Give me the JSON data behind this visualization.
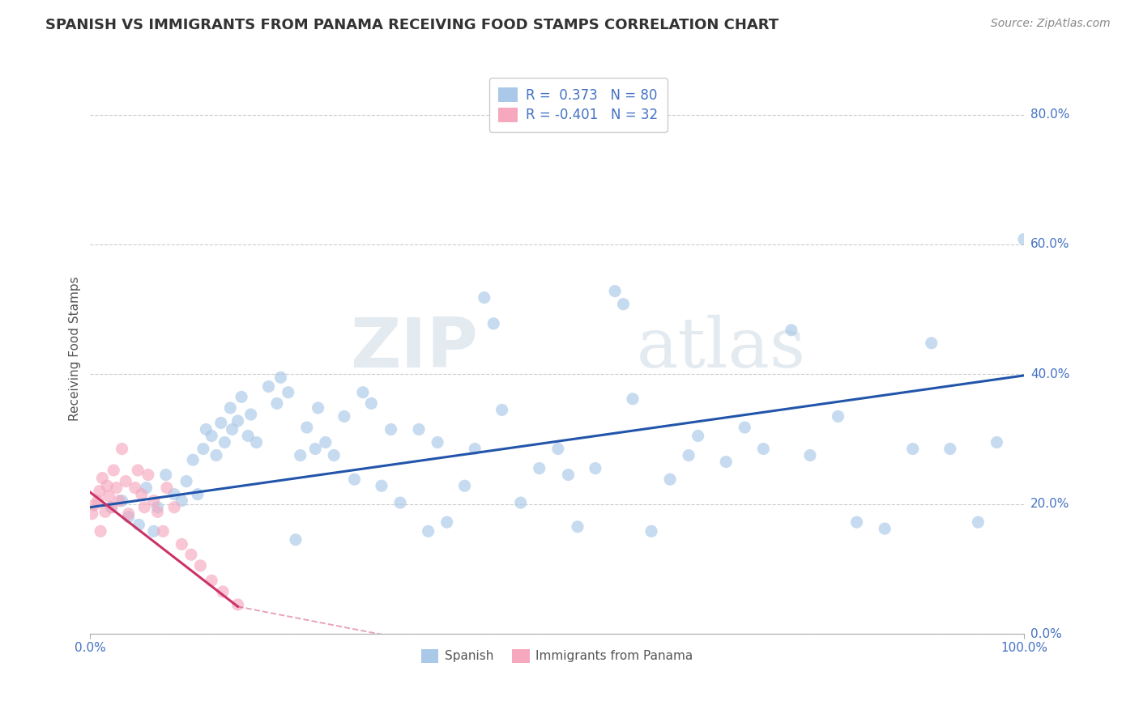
{
  "title": "SPANISH VS IMMIGRANTS FROM PANAMA RECEIVING FOOD STAMPS CORRELATION CHART",
  "source": "Source: ZipAtlas.com",
  "ylabel": "Receiving Food Stamps",
  "ytick_labels": [
    "0.0%",
    "20.0%",
    "40.0%",
    "60.0%",
    "80.0%"
  ],
  "ytick_values": [
    0.0,
    0.2,
    0.4,
    0.6,
    0.8
  ],
  "xlim": [
    0.0,
    1.0
  ],
  "ylim": [
    0.0,
    0.88
  ],
  "watermark_zip": "ZIP",
  "watermark_atlas": "atlas",
  "legend_blue_label": "R =  0.373   N = 80",
  "legend_pink_label": "R = -0.401   N = 32",
  "legend_spanish": "Spanish",
  "legend_panama": "Immigrants from Panama",
  "blue_scatter_x": [
    0.022,
    0.034,
    0.041,
    0.052,
    0.06,
    0.068,
    0.072,
    0.081,
    0.09,
    0.098,
    0.103,
    0.11,
    0.115,
    0.121,
    0.124,
    0.13,
    0.135,
    0.14,
    0.144,
    0.15,
    0.152,
    0.158,
    0.162,
    0.169,
    0.172,
    0.178,
    0.191,
    0.2,
    0.204,
    0.212,
    0.22,
    0.225,
    0.232,
    0.241,
    0.244,
    0.252,
    0.261,
    0.272,
    0.283,
    0.292,
    0.301,
    0.312,
    0.322,
    0.332,
    0.352,
    0.362,
    0.372,
    0.382,
    0.401,
    0.412,
    0.422,
    0.432,
    0.441,
    0.461,
    0.481,
    0.501,
    0.512,
    0.522,
    0.541,
    0.562,
    0.571,
    0.581,
    0.601,
    0.621,
    0.641,
    0.651,
    0.681,
    0.701,
    0.721,
    0.751,
    0.771,
    0.801,
    0.821,
    0.851,
    0.881,
    0.901,
    0.921,
    0.951,
    0.971,
    1.0
  ],
  "blue_scatter_y": [
    0.195,
    0.205,
    0.18,
    0.168,
    0.225,
    0.158,
    0.195,
    0.245,
    0.215,
    0.205,
    0.235,
    0.268,
    0.215,
    0.285,
    0.315,
    0.305,
    0.275,
    0.325,
    0.295,
    0.348,
    0.315,
    0.328,
    0.365,
    0.305,
    0.338,
    0.295,
    0.381,
    0.355,
    0.395,
    0.372,
    0.145,
    0.275,
    0.318,
    0.285,
    0.348,
    0.295,
    0.275,
    0.335,
    0.238,
    0.372,
    0.355,
    0.228,
    0.315,
    0.202,
    0.315,
    0.158,
    0.295,
    0.172,
    0.228,
    0.285,
    0.518,
    0.478,
    0.345,
    0.202,
    0.255,
    0.285,
    0.245,
    0.165,
    0.255,
    0.528,
    0.508,
    0.362,
    0.158,
    0.238,
    0.275,
    0.305,
    0.265,
    0.318,
    0.285,
    0.468,
    0.275,
    0.335,
    0.172,
    0.162,
    0.285,
    0.448,
    0.285,
    0.172,
    0.295,
    0.608
  ],
  "pink_scatter_x": [
    0.002,
    0.004,
    0.008,
    0.01,
    0.011,
    0.013,
    0.016,
    0.018,
    0.02,
    0.023,
    0.025,
    0.028,
    0.031,
    0.034,
    0.038,
    0.041,
    0.048,
    0.051,
    0.055,
    0.058,
    0.062,
    0.068,
    0.072,
    0.078,
    0.082,
    0.09,
    0.098,
    0.108,
    0.118,
    0.13,
    0.142,
    0.158
  ],
  "pink_scatter_y": [
    0.185,
    0.198,
    0.205,
    0.22,
    0.158,
    0.24,
    0.188,
    0.228,
    0.212,
    0.195,
    0.252,
    0.225,
    0.205,
    0.285,
    0.235,
    0.185,
    0.225,
    0.252,
    0.215,
    0.195,
    0.245,
    0.205,
    0.188,
    0.158,
    0.225,
    0.195,
    0.138,
    0.122,
    0.105,
    0.082,
    0.065,
    0.045
  ],
  "blue_line_x": [
    0.0,
    1.0
  ],
  "blue_line_y": [
    0.195,
    0.398
  ],
  "pink_line_x": [
    0.0,
    0.158
  ],
  "pink_line_y": [
    0.218,
    0.042
  ],
  "blue_line_color": "#2255aa",
  "pink_line_color": "#cc3366",
  "blue_scatter_color": "#aac8e8",
  "pink_scatter_color": "#f5a8be",
  "background_color": "#ffffff",
  "grid_color": "#cccccc",
  "title_fontsize": 13,
  "source_fontsize": 10,
  "axis_label_fontsize": 11,
  "tick_label_color": "#4472c4",
  "tick_label_fontsize": 11,
  "scatter_size": 120,
  "scatter_alpha": 0.65,
  "line_width": 2.2
}
